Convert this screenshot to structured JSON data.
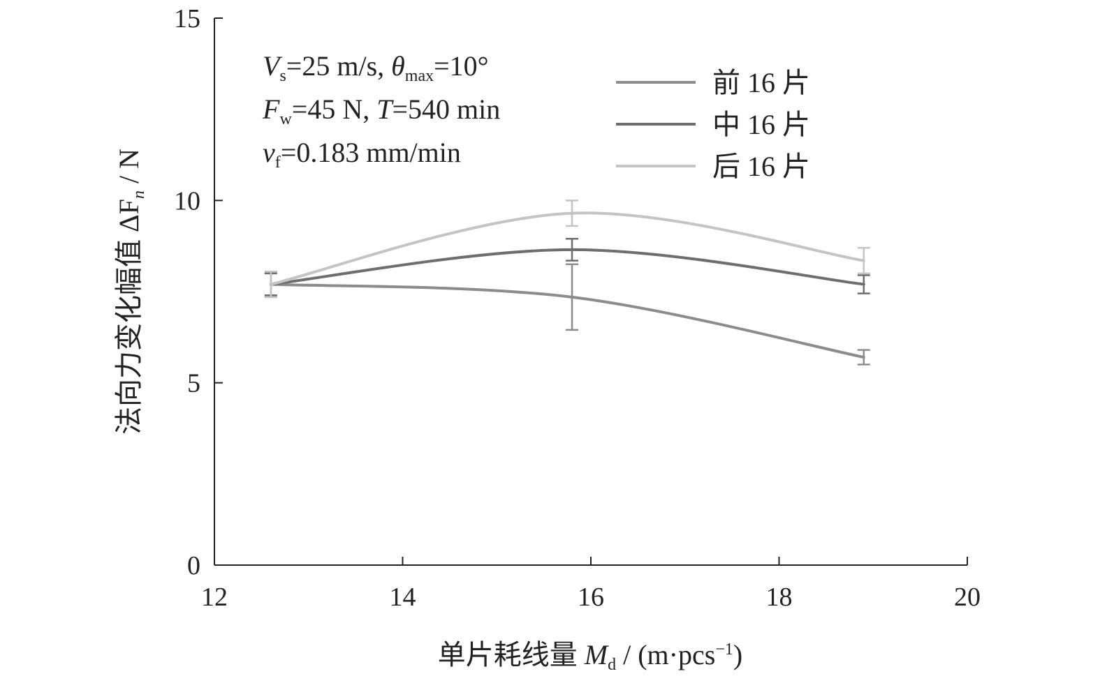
{
  "chart_data": {
    "type": "line",
    "xlabel": {
      "main": "单片耗线量 ",
      "var": "M",
      "sub": "d",
      "unit_pre": " / (m·pcs",
      "unit_sup": "−1",
      "unit_post": ")"
    },
    "ylabel": {
      "main": "法向力变化幅值 ΔF",
      "sub": "n",
      "unit": " / N"
    },
    "xlim": [
      12,
      20
    ],
    "ylim": [
      0,
      15
    ],
    "x_ticks": [
      "12",
      "14",
      "16",
      "18",
      "20"
    ],
    "y_ticks": [
      "0",
      "5",
      "10",
      "15"
    ],
    "x_tick_values": [
      12,
      14,
      16,
      18,
      20
    ],
    "y_tick_values": [
      0,
      5,
      10,
      15
    ],
    "conditions": [
      [
        {
          "t": "V"
        },
        {
          "t": "s",
          "sub": true
        },
        {
          "t": "=25 m/s, "
        },
        {
          "t": "θ"
        },
        {
          "t": "max",
          "sub": true
        },
        {
          "t": "=10°"
        }
      ],
      [
        {
          "t": "F"
        },
        {
          "t": "w",
          "sub": true
        },
        {
          "t": "=45 N, "
        },
        {
          "t": "T"
        },
        {
          "t": "=540 min"
        }
      ],
      [
        {
          "t": "v"
        },
        {
          "t": "f",
          "sub": true
        },
        {
          "t": "=0.183 mm/min"
        }
      ]
    ],
    "series": [
      {
        "name": "前 16 片",
        "color": "#8c8c8c",
        "x": [
          12.6,
          15.8,
          18.9
        ],
        "y": [
          7.7,
          7.35,
          5.7
        ],
        "err": [
          0.35,
          0.9,
          0.2
        ]
      },
      {
        "name": "中 16 片",
        "color": "#6e6e6e",
        "x": [
          12.6,
          15.8,
          18.9
        ],
        "y": [
          7.7,
          8.65,
          7.7
        ],
        "err": [
          0.3,
          0.3,
          0.25
        ]
      },
      {
        "name": "后 16 片",
        "color": "#c4c4c4",
        "x": [
          12.6,
          15.8,
          18.9
        ],
        "y": [
          7.7,
          9.65,
          8.35
        ],
        "err": [
          0.35,
          0.35,
          0.35
        ]
      }
    ],
    "legend_position": "top-right",
    "grid": false
  }
}
